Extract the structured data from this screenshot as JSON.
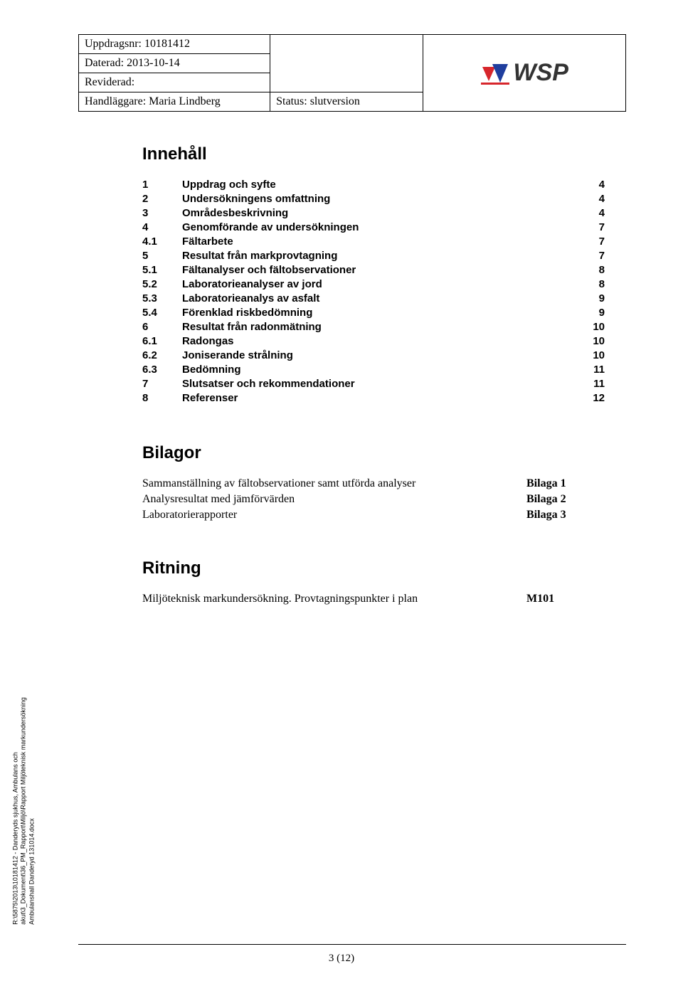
{
  "header": {
    "uppdragsnr": "Uppdragsnr: 10181412",
    "daterad": "Daterad: 2013-10-14",
    "reviderad": "Reviderad:",
    "handlaggare": "Handläggare: Maria Lindberg",
    "status": "Status: slutversion",
    "logo_text": "WSP",
    "logo_colors": {
      "red": "#d7262c",
      "blue": "#1f3e9e"
    }
  },
  "toc": {
    "title": "Innehåll",
    "rows": [
      {
        "n": "1",
        "t": "Uppdrag och syfte",
        "p": "4"
      },
      {
        "n": "2",
        "t": "Undersökningens omfattning",
        "p": "4"
      },
      {
        "n": "3",
        "t": "Områdesbeskrivning",
        "p": "4"
      },
      {
        "n": "4",
        "t": "Genomförande av undersökningen",
        "p": "7"
      },
      {
        "n": "4.1",
        "t": "Fältarbete",
        "p": "7"
      },
      {
        "n": "5",
        "t": "Resultat från markprovtagning",
        "p": "7"
      },
      {
        "n": "5.1",
        "t": "Fältanalyser och fältobservationer",
        "p": "8"
      },
      {
        "n": "5.2",
        "t": "Laboratorieanalyser av jord",
        "p": "8"
      },
      {
        "n": "5.3",
        "t": "Laboratorieanalys av asfalt",
        "p": "9"
      },
      {
        "n": "5.4",
        "t": "Förenklad riskbedömning",
        "p": "9"
      },
      {
        "n": "6",
        "t": "Resultat från radonmätning",
        "p": "10"
      },
      {
        "n": "6.1",
        "t": "Radongas",
        "p": "10"
      },
      {
        "n": "6.2",
        "t": "Joniserande strålning",
        "p": "10"
      },
      {
        "n": "6.3",
        "t": "Bedömning",
        "p": "11"
      },
      {
        "n": "7",
        "t": "Slutsatser och rekommendationer",
        "p": "11"
      },
      {
        "n": "8",
        "t": "Referenser",
        "p": "12"
      }
    ]
  },
  "bilagor": {
    "title": "Bilagor",
    "rows": [
      {
        "t": "Sammanställning av fältobservationer samt utförda analyser",
        "b": "Bilaga 1"
      },
      {
        "t": "Analysresultat med jämförvärden",
        "b": "Bilaga 2"
      },
      {
        "t": "Laboratorierapporter",
        "b": "Bilaga 3"
      }
    ]
  },
  "ritning": {
    "title": "Ritning",
    "rows": [
      {
        "t": "Miljöteknisk markundersökning. Provtagningspunkter i plan",
        "b": "M101"
      }
    ]
  },
  "side": {
    "l1": "R:\\5875\\2013\\10181412 - Danderyds sjukhus, Ambulans och",
    "l2": "akut\\3_Dokument\\36_PM_Rapport\\Miljö\\Rapport Miljöteknisk markundersökning",
    "l3": "Ambulanshall Danderyd 131014.docx"
  },
  "footer": {
    "page": "3 (12)"
  }
}
